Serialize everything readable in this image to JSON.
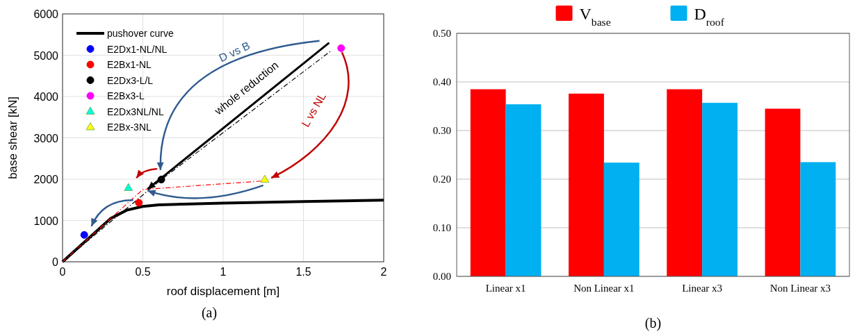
{
  "chart_data": [
    {
      "type": "line",
      "xlabel": "roof displacement [m]",
      "ylabel": "base shear [kN]",
      "xlim": [
        0,
        2
      ],
      "xticks": [
        0,
        0.5,
        1,
        1.5,
        2
      ],
      "ylim": [
        0,
        6000
      ],
      "yticks": [
        0,
        1000,
        2000,
        3000,
        4000,
        5000,
        6000
      ],
      "grid": true,
      "legend": "top left",
      "annotations": [
        "D vs B",
        "whole reduction",
        "L vs NL",
        "(a)"
      ],
      "series": [
        {
          "name": "pushover curve",
          "type": "line",
          "color": "#000000",
          "line_style": "solid",
          "x": [
            0,
            0.3,
            0.4,
            0.5,
            0.6,
            1,
            1.5,
            2
          ],
          "values": [
            0,
            1050,
            1250,
            1340,
            1380,
            1420,
            1460,
            1490
          ]
        },
        {
          "type": "line",
          "color": "#000000",
          "line_style": "dashed",
          "x": [
            0,
            0.615,
            1.67
          ],
          "values": [
            0,
            1990,
            5100
          ]
        },
        {
          "type": "line",
          "color": "#ff0000",
          "line_style": "dashed",
          "x": [
            0,
            0.5,
            1.26
          ],
          "values": [
            0,
            1750,
            1960
          ]
        },
        {
          "name": "E2Dx1-NL/NL",
          "type": "scatter",
          "color": "#0000ff",
          "marker": "circle",
          "x": [
            0.135
          ],
          "values": [
            650
          ]
        },
        {
          "name": "E2Bx1-NL",
          "type": "scatter",
          "color": "#ff0000",
          "marker": "circle",
          "x": [
            0.475
          ],
          "values": [
            1430
          ]
        },
        {
          "name": "E2Dx3-L/L",
          "type": "scatter",
          "color": "#000000",
          "marker": "circle",
          "x": [
            0.615
          ],
          "values": [
            1990
          ]
        },
        {
          "name": "E2Bx3-L",
          "type": "scatter",
          "color": "#ff00ff",
          "marker": "circle",
          "x": [
            1.735
          ],
          "values": [
            5170
          ]
        },
        {
          "name": "E2Dx3NL/NL",
          "type": "scatter",
          "color": "#00ffdd",
          "marker": "triangle",
          "x": [
            0.41
          ],
          "values": [
            1790
          ]
        },
        {
          "name": "E2Bx-3NL",
          "type": "scatter",
          "color": "#ffff00",
          "marker": "triangle",
          "x": [
            1.26
          ],
          "values": [
            1990
          ]
        }
      ]
    },
    {
      "type": "bar",
      "categories": [
        "Linear x1",
        "Non Linear x1",
        "Linear x3",
        "Non Linear x3"
      ],
      "ylim": [
        0,
        0.5
      ],
      "yticks": [
        {
          "value": 0,
          "label": "0.00"
        },
        {
          "value": 0.1,
          "label": "0.10"
        },
        {
          "value": 0.2,
          "label": "0.20"
        },
        {
          "value": 0.3,
          "label": "0.30"
        },
        {
          "value": 0.4,
          "label": "0.40"
        },
        {
          "value": 0.5,
          "label": "0.50"
        }
      ],
      "grid": "y",
      "legend": "top",
      "annotations": [
        "(b)"
      ],
      "series": [
        {
          "name": "V$_{base}$",
          "color": "#ff0000",
          "values": [
            0.385,
            0.376,
            0.385,
            0.345
          ]
        },
        {
          "name": "D$_{roof}$",
          "color": "#00b0f0",
          "values": [
            0.354,
            0.234,
            0.357,
            0.235
          ]
        }
      ]
    }
  ]
}
